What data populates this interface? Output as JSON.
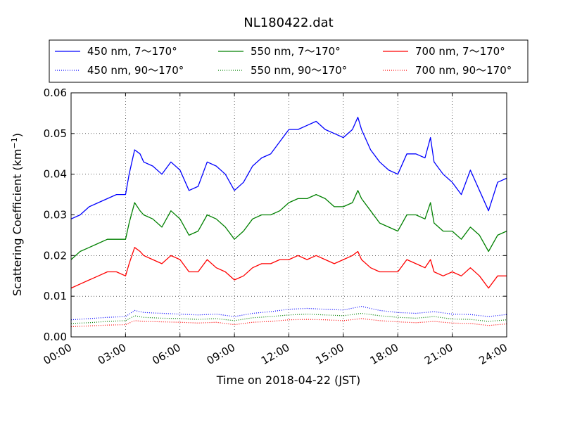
{
  "chart_data": {
    "type": "line",
    "title": "NL180422.dat",
    "xlabel": "Time on 2018-04-22 (JST)",
    "ylabel": "Scattering Coefficient (km",
    "ylabel_sup": "−1",
    "ylabel_close": ")",
    "xlim": [
      0,
      24
    ],
    "ylim": [
      0,
      0.06
    ],
    "grid": true,
    "legend_position": "top",
    "x_ticks": [
      0,
      3,
      6,
      9,
      12,
      15,
      18,
      21,
      24
    ],
    "x_tick_labels": [
      "00:00",
      "03:00",
      "06:00",
      "09:00",
      "12:00",
      "15:00",
      "18:00",
      "21:00",
      "24:00"
    ],
    "y_ticks": [
      0,
      0.01,
      0.02,
      0.03,
      0.04,
      0.05,
      0.06
    ],
    "y_tick_labels": [
      "0.00",
      "0.01",
      "0.02",
      "0.03",
      "0.04",
      "0.05",
      "0.06"
    ],
    "series": [
      {
        "name": "450 nm, 7～170°",
        "color": "#0000ff",
        "style": "solid",
        "x": [
          0,
          0.5,
          1,
          1.5,
          2,
          2.5,
          3,
          3.2,
          3.5,
          3.8,
          4,
          4.5,
          5,
          5.5,
          6,
          6.5,
          7,
          7.5,
          8,
          8.5,
          9,
          9.5,
          10,
          10.5,
          11,
          11.5,
          12,
          12.5,
          13,
          13.5,
          14,
          14.5,
          15,
          15.5,
          15.8,
          16,
          16.5,
          17,
          17.5,
          18,
          18.5,
          19,
          19.5,
          19.8,
          20,
          20.5,
          21,
          21.5,
          22,
          22.5,
          23,
          23.5,
          24
        ],
        "y": [
          0.029,
          0.03,
          0.032,
          0.033,
          0.034,
          0.035,
          0.035,
          0.04,
          0.046,
          0.045,
          0.043,
          0.042,
          0.04,
          0.043,
          0.041,
          0.036,
          0.037,
          0.043,
          0.042,
          0.04,
          0.036,
          0.038,
          0.042,
          0.044,
          0.045,
          0.048,
          0.051,
          0.051,
          0.052,
          0.053,
          0.051,
          0.05,
          0.049,
          0.051,
          0.054,
          0.051,
          0.046,
          0.043,
          0.041,
          0.04,
          0.045,
          0.045,
          0.044,
          0.049,
          0.043,
          0.04,
          0.038,
          0.035,
          0.041,
          0.036,
          0.031,
          0.038,
          0.039
        ]
      },
      {
        "name": "450 nm, 90～170°",
        "color": "#0000ff",
        "style": "dotted",
        "x": [
          0,
          1,
          2,
          3,
          3.5,
          4,
          5,
          6,
          7,
          8,
          9,
          10,
          11,
          12,
          13,
          14,
          15,
          16,
          17,
          18,
          19,
          20,
          21,
          22,
          23,
          24
        ],
        "y": [
          0.0042,
          0.0045,
          0.0048,
          0.005,
          0.0065,
          0.006,
          0.0058,
          0.0056,
          0.0054,
          0.0056,
          0.005,
          0.0058,
          0.0062,
          0.0068,
          0.007,
          0.0068,
          0.0066,
          0.0075,
          0.0065,
          0.006,
          0.0058,
          0.0062,
          0.0056,
          0.0055,
          0.005,
          0.0055
        ]
      },
      {
        "name": "550 nm, 7～170°",
        "color": "#008000",
        "style": "solid",
        "x": [
          0,
          0.5,
          1,
          1.5,
          2,
          2.5,
          3,
          3.2,
          3.5,
          3.8,
          4,
          4.5,
          5,
          5.5,
          6,
          6.5,
          7,
          7.5,
          8,
          8.5,
          9,
          9.5,
          10,
          10.5,
          11,
          11.5,
          12,
          12.5,
          13,
          13.5,
          14,
          14.5,
          15,
          15.5,
          15.8,
          16,
          16.5,
          17,
          17.5,
          18,
          18.5,
          19,
          19.5,
          19.8,
          20,
          20.5,
          21,
          21.5,
          22,
          22.5,
          23,
          23.5,
          24
        ],
        "y": [
          0.019,
          0.021,
          0.022,
          0.023,
          0.024,
          0.024,
          0.024,
          0.028,
          0.033,
          0.031,
          0.03,
          0.029,
          0.027,
          0.031,
          0.029,
          0.025,
          0.026,
          0.03,
          0.029,
          0.027,
          0.024,
          0.026,
          0.029,
          0.03,
          0.03,
          0.031,
          0.033,
          0.034,
          0.034,
          0.035,
          0.034,
          0.032,
          0.032,
          0.033,
          0.036,
          0.034,
          0.031,
          0.028,
          0.027,
          0.026,
          0.03,
          0.03,
          0.029,
          0.033,
          0.028,
          0.026,
          0.026,
          0.024,
          0.027,
          0.025,
          0.021,
          0.025,
          0.026
        ]
      },
      {
        "name": "550 nm, 90～170°",
        "color": "#008000",
        "style": "dotted",
        "x": [
          0,
          1,
          2,
          3,
          3.5,
          4,
          5,
          6,
          7,
          8,
          9,
          10,
          11,
          12,
          13,
          14,
          15,
          16,
          17,
          18,
          19,
          20,
          21,
          22,
          23,
          24
        ],
        "y": [
          0.0033,
          0.0035,
          0.0038,
          0.004,
          0.0052,
          0.0048,
          0.0046,
          0.0045,
          0.0043,
          0.0045,
          0.004,
          0.0047,
          0.005,
          0.0054,
          0.0056,
          0.0054,
          0.0052,
          0.0058,
          0.0052,
          0.0048,
          0.0046,
          0.005,
          0.0044,
          0.0043,
          0.0038,
          0.0042
        ]
      },
      {
        "name": "700 nm, 7～170°",
        "color": "#ff0000",
        "style": "solid",
        "x": [
          0,
          0.5,
          1,
          1.5,
          2,
          2.5,
          3,
          3.2,
          3.5,
          3.8,
          4,
          4.5,
          5,
          5.5,
          6,
          6.5,
          7,
          7.5,
          8,
          8.5,
          9,
          9.5,
          10,
          10.5,
          11,
          11.5,
          12,
          12.5,
          13,
          13.5,
          14,
          14.5,
          15,
          15.5,
          15.8,
          16,
          16.5,
          17,
          17.5,
          18,
          18.5,
          19,
          19.5,
          19.8,
          20,
          20.5,
          21,
          21.5,
          22,
          22.5,
          23,
          23.5,
          24
        ],
        "y": [
          0.012,
          0.013,
          0.014,
          0.015,
          0.016,
          0.016,
          0.015,
          0.018,
          0.022,
          0.021,
          0.02,
          0.019,
          0.018,
          0.02,
          0.019,
          0.016,
          0.016,
          0.019,
          0.017,
          0.016,
          0.014,
          0.015,
          0.017,
          0.018,
          0.018,
          0.019,
          0.019,
          0.02,
          0.019,
          0.02,
          0.019,
          0.018,
          0.019,
          0.02,
          0.021,
          0.019,
          0.017,
          0.016,
          0.016,
          0.016,
          0.019,
          0.018,
          0.017,
          0.019,
          0.016,
          0.015,
          0.016,
          0.015,
          0.017,
          0.015,
          0.012,
          0.015,
          0.015
        ]
      },
      {
        "name": "700 nm, 90～170°",
        "color": "#ff0000",
        "style": "dotted",
        "x": [
          0,
          1,
          2,
          3,
          3.5,
          4,
          5,
          6,
          7,
          8,
          9,
          10,
          11,
          12,
          13,
          14,
          15,
          16,
          17,
          18,
          19,
          20,
          21,
          22,
          23,
          24
        ],
        "y": [
          0.0025,
          0.0027,
          0.0029,
          0.003,
          0.004,
          0.0038,
          0.0037,
          0.0036,
          0.0034,
          0.0036,
          0.003,
          0.0036,
          0.0038,
          0.0042,
          0.0043,
          0.0042,
          0.004,
          0.0045,
          0.004,
          0.0037,
          0.0035,
          0.0038,
          0.0034,
          0.0033,
          0.0028,
          0.0032
        ]
      }
    ]
  }
}
